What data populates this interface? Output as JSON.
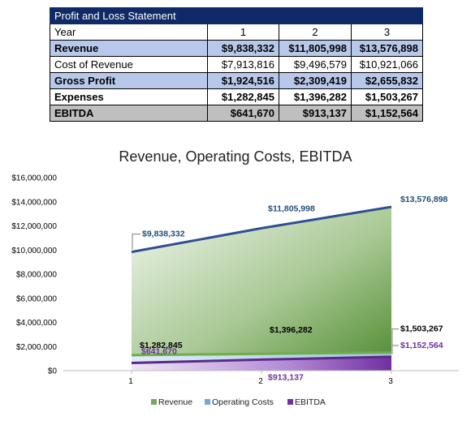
{
  "table": {
    "title": "Profit and Loss Statement",
    "header": {
      "label": "Year",
      "values": [
        "1",
        "2",
        "3"
      ]
    },
    "rows": [
      {
        "label": "Revenue",
        "values": [
          "$9,838,332",
          "$11,805,998",
          "$13,576,898"
        ]
      },
      {
        "label": "Cost of Revenue",
        "values": [
          "$7,913,816",
          "$9,496,579",
          "$10,921,066"
        ]
      },
      {
        "label": "Gross Profit",
        "values": [
          "$1,924,516",
          "$2,309,419",
          "$2,655,832"
        ]
      },
      {
        "label": "Expenses",
        "values": [
          "$1,282,845",
          "$1,396,282",
          "$1,503,267"
        ]
      },
      {
        "label": "EBITDA",
        "values": [
          "$641,670",
          "$913,137",
          "$1,152,564"
        ]
      }
    ]
  },
  "chart_data": {
    "type": "area",
    "title": "Revenue, Operating Costs, EBITDA",
    "categories": [
      "1",
      "2",
      "3"
    ],
    "ylim": [
      0,
      16000000
    ],
    "yticks": [
      "$0",
      "$2,000,000",
      "$4,000,000",
      "$6,000,000",
      "$8,000,000",
      "$10,000,000",
      "$12,000,000",
      "$14,000,000",
      "$16,000,000"
    ],
    "grid": false,
    "legend": "bottom",
    "series": [
      {
        "name": "Revenue",
        "values": [
          9838332,
          11805998,
          13576898
        ],
        "labels": [
          "$9,838,332",
          "$11,805,998",
          "$13,576,898"
        ],
        "color": "#2f4f8f",
        "fill": "#5a8a3a",
        "label_color": "#1f4e79"
      },
      {
        "name": "Operating Costs",
        "values": [
          1282845,
          1396282,
          1503267
        ],
        "labels": [
          "$1,282,845",
          "$1,396,282",
          "$1,503,267"
        ],
        "color": "#70ad47",
        "fill": "#9dc3e6",
        "label_color": "#000000"
      },
      {
        "name": "EBITDA",
        "values": [
          641670,
          913137,
          1152564
        ],
        "labels": [
          "$641,670",
          "$913,137",
          "$1,152,564"
        ],
        "color": "#5b2a86",
        "fill": "#7030a0",
        "label_color": "#7030a0"
      }
    ]
  }
}
